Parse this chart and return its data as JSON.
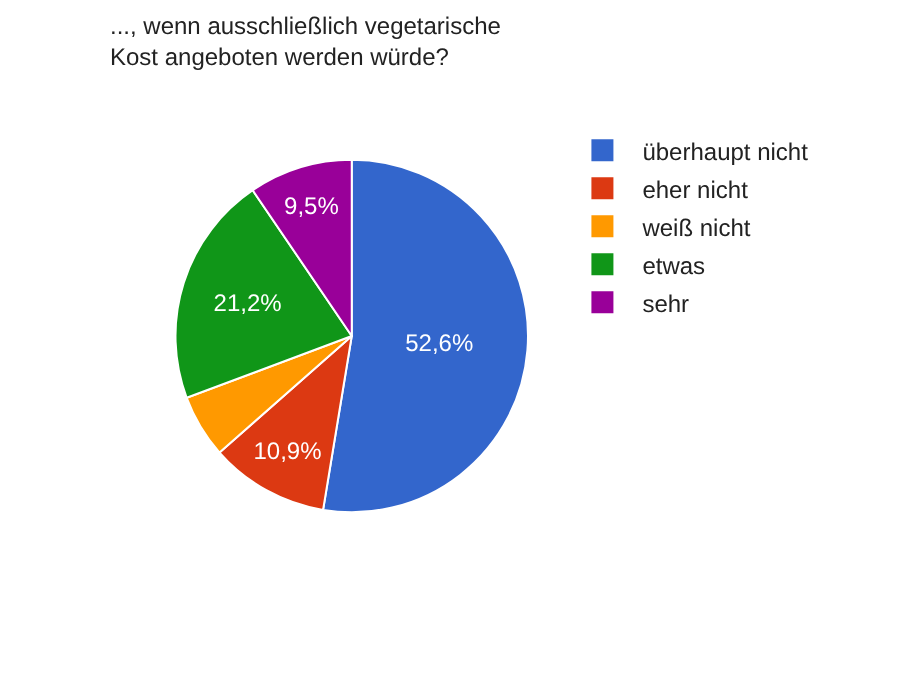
{
  "chart_data": {
    "type": "pie",
    "title": "..., wenn ausschließlich vegetarische Kost angeboten werden würde?",
    "categories": [
      "überhaupt nicht",
      "eher nicht",
      "weiß nicht",
      "etwas",
      "sehr"
    ],
    "values": [
      52.6,
      10.9,
      5.8,
      21.2,
      9.5
    ],
    "value_labels": [
      "52,6%",
      "10,9%",
      null,
      "21,2%",
      "9,5%"
    ],
    "colors": [
      "#3366cc",
      "#dc3912",
      "#ff9900",
      "#109618",
      "#990099"
    ],
    "legend": "right"
  }
}
